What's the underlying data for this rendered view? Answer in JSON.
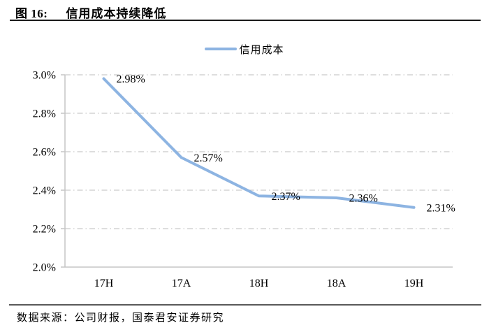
{
  "header": {
    "figure_label": "图 16:",
    "title": "信用成本持续降低"
  },
  "legend": {
    "label": "信用成本"
  },
  "chart_data": {
    "type": "line",
    "title": "信用成本持续降低",
    "categories": [
      "17H",
      "17A",
      "18H",
      "18A",
      "19H"
    ],
    "series": [
      {
        "name": "信用成本",
        "color": "#8DB4E2",
        "values": [
          2.98,
          2.57,
          2.37,
          2.36,
          2.31
        ]
      }
    ],
    "data_labels": [
      "2.98%",
      "2.57%",
      "2.37%",
      "2.36%",
      "2.31%"
    ],
    "xlabel": "",
    "ylabel": "",
    "ylim": [
      2.0,
      3.0
    ],
    "ytick_step": 0.2,
    "ytick_labels": [
      "3.0%",
      "2.8%",
      "2.6%",
      "2.4%",
      "2.2%",
      "2.0%"
    ],
    "grid": "horizontal dash-dot",
    "legend_position": "top-center",
    "colors": {
      "line": "#8DB4E2",
      "grid": "#C9C9C9",
      "axis": "#C6C6C6",
      "text": "#000000"
    }
  },
  "footer": {
    "source": "数据来源：公司财报，国泰君安证券研究"
  }
}
